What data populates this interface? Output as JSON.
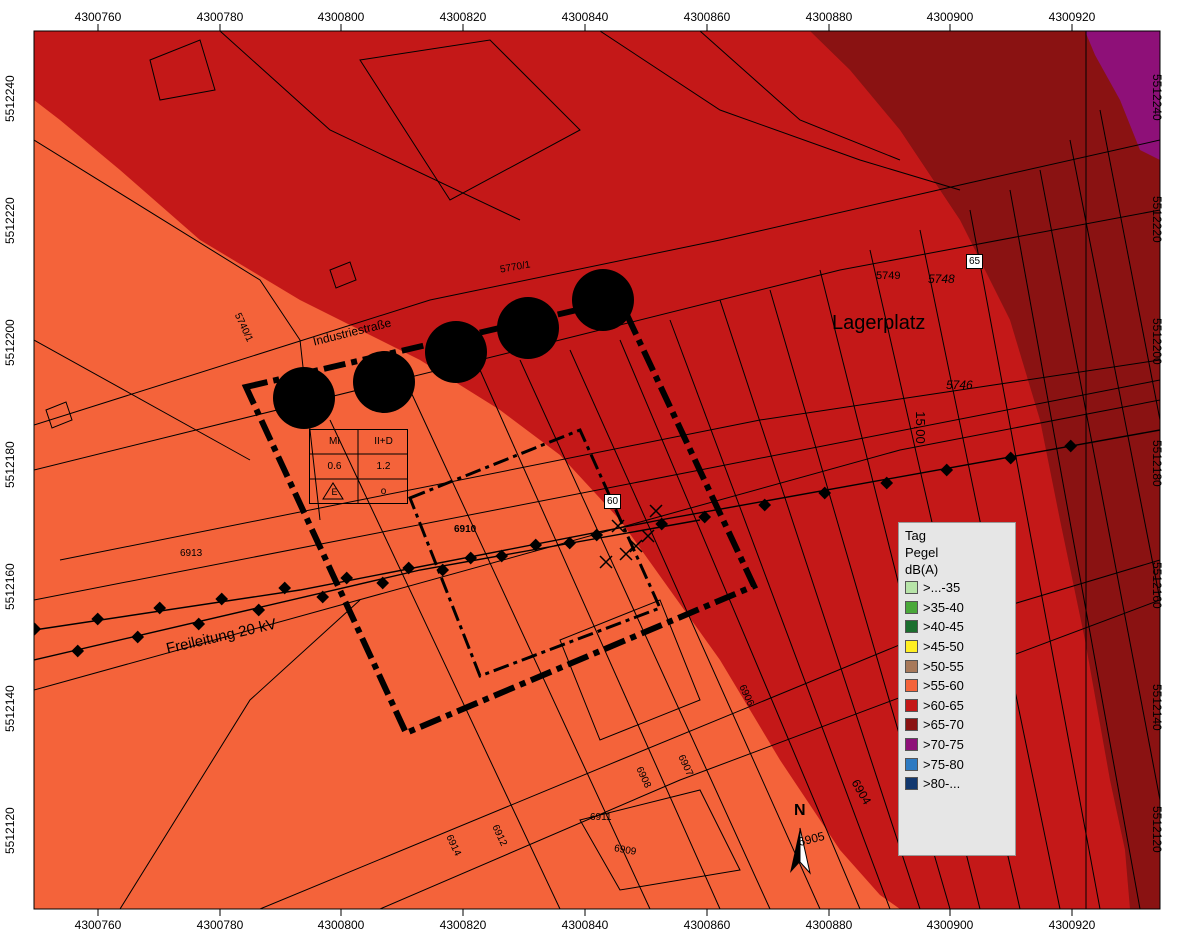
{
  "axes": {
    "x_ticks": [
      "4300760",
      "4300780",
      "4300800",
      "4300820",
      "4300840",
      "4300860",
      "4300880",
      "4300900",
      "4300920"
    ],
    "y_ticks": [
      "5512240",
      "5512220",
      "5512200",
      "5512180",
      "5512160",
      "5512140",
      "5512120"
    ]
  },
  "map_labels": {
    "street": "Industriestraße",
    "area": "Lagerplatz",
    "powerline": "Freileitung 20 kV",
    "parcel_6910": "6910",
    "parcel_6911": "6911",
    "parcel_6913": "6913",
    "parcel_6914": "6914",
    "parcel_6912": "6912",
    "parcel_6909": "6909",
    "parcel_6908": "6908",
    "parcel_6907": "6907",
    "parcel_6906": "6906",
    "parcel_6905": "6905",
    "parcel_6904": "6904",
    "parcel_5749": "5749",
    "parcel_5748": "5748",
    "parcel_5746": "5746",
    "parcel_57401": "5740/1",
    "parcel_5770": "5770/1",
    "dim_1500": "15,00",
    "contour_60": "60",
    "contour_65": "65",
    "north": "N"
  },
  "mi_table": {
    "h1": "MI",
    "h2": "II+D",
    "v1": "0.6",
    "v2": "1.2",
    "c1": "E",
    "c2": "o"
  },
  "legend": {
    "title1": "Tag",
    "title2": "Pegel",
    "title3": "dB(A)",
    "items": [
      {
        "label": ">...-35",
        "color": "#b7e4a8"
      },
      {
        "label": ">35-40",
        "color": "#4aa83a"
      },
      {
        "label": ">40-45",
        "color": "#1b6e2e"
      },
      {
        "label": ">45-50",
        "color": "#ffef22"
      },
      {
        "label": ">50-55",
        "color": "#a8795a"
      },
      {
        "label": ">55-60",
        "color": "#f4633a"
      },
      {
        "label": ">60-65",
        "color": "#c41818"
      },
      {
        "label": ">65-70",
        "color": "#8a1212"
      },
      {
        "label": ">70-75",
        "color": "#8e1078"
      },
      {
        "label": ">75-80",
        "color": "#2d7ac2"
      },
      {
        "label": ">80-...",
        "color": "#12386e"
      }
    ]
  },
  "colors": {
    "zone_55_60": "#f4633a",
    "zone_60_65": "#c41818",
    "zone_65_70": "#8a1212",
    "zone_70_75": "#8e1078"
  }
}
